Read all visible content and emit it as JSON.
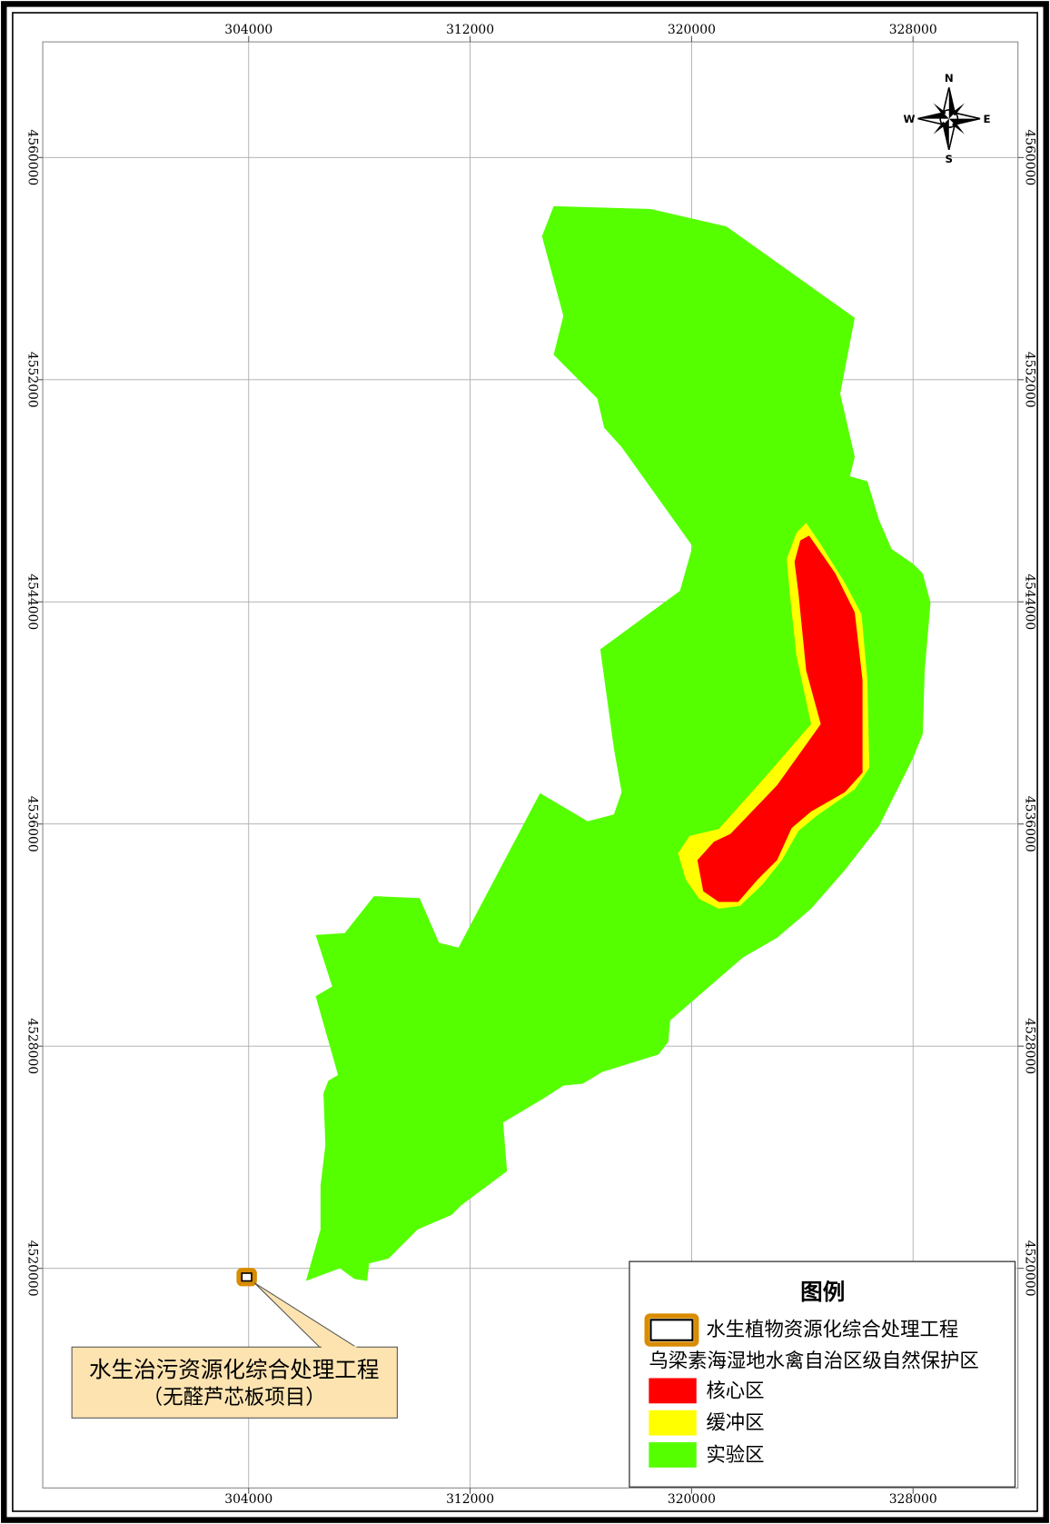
{
  "map": {
    "xticks": [
      304000,
      312000,
      320000,
      328000
    ],
    "yticks": [
      4560000,
      4552000,
      4544000,
      4536000,
      4528000,
      4520000
    ],
    "compass": {
      "n": "N",
      "s": "S",
      "w": "W",
      "e": "E"
    },
    "callout": {
      "lines": [
        "水生治污资源化综合处理工程",
        "（无醛芦芯板项目）"
      ]
    },
    "legend": {
      "title": "图例",
      "site": "水生植物资源化综合处理工程",
      "subtitle": "乌梁素海湿地水禽自治区级自然保护区",
      "zones": [
        {
          "label": "核心区",
          "color": "#ff0000"
        },
        {
          "label": "缓冲区",
          "color": "#ffff00"
        },
        {
          "label": "实验区",
          "color": "#55ff00"
        }
      ]
    }
  }
}
